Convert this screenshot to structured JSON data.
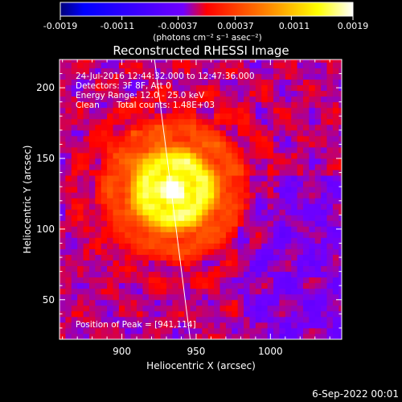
{
  "chart_data": {
    "type": "heatmap",
    "title": "Reconstructed RHESSI Image",
    "xlabel": "Heliocentric X (arcsec)",
    "ylabel": "Heliocentric Y (arcsec)",
    "xlim": [
      858,
      1048
    ],
    "ylim": [
      22,
      220
    ],
    "x_ticks": [
      900,
      950,
      1000
    ],
    "y_ticks": [
      50,
      100,
      150,
      200
    ],
    "colorbar": {
      "ticks": [
        "-0.0019",
        "-0.0011",
        "-0.00037",
        "0.00037",
        "0.0011",
        "0.0019"
      ],
      "range": [
        -0.0019,
        0.0019
      ],
      "unit_label": "(photons cm⁻² s⁻¹ asec⁻²)",
      "colormap": [
        "#000078",
        "#0000ff",
        "#7000ff",
        "#ff0000",
        "#ff8000",
        "#ffff00",
        "#ffffff"
      ]
    },
    "annotations": [
      "24-Jul-2016 12:44:32.000 to 12:47:36.000",
      "Detectors: 3F 8F, Att 0",
      "Energy Range: 12.0 - 25.0 keV",
      "Clean",
      "Total counts: 1.48E+03"
    ],
    "peak_label": "Position of Peak = [941,114]",
    "peak": [
      941,
      114
    ],
    "limb_line": [
      [
        922,
        220
      ],
      [
        946,
        22
      ]
    ],
    "sources": [
      {
        "x": 935,
        "y": 128,
        "amplitude": 1.0
      },
      {
        "x": 908,
        "y": 168,
        "amplitude": 0.22
      },
      {
        "x": 965,
        "y": 178,
        "amplitude": 0.18
      }
    ],
    "timestamp": "6-Sep-2022 00:01"
  }
}
